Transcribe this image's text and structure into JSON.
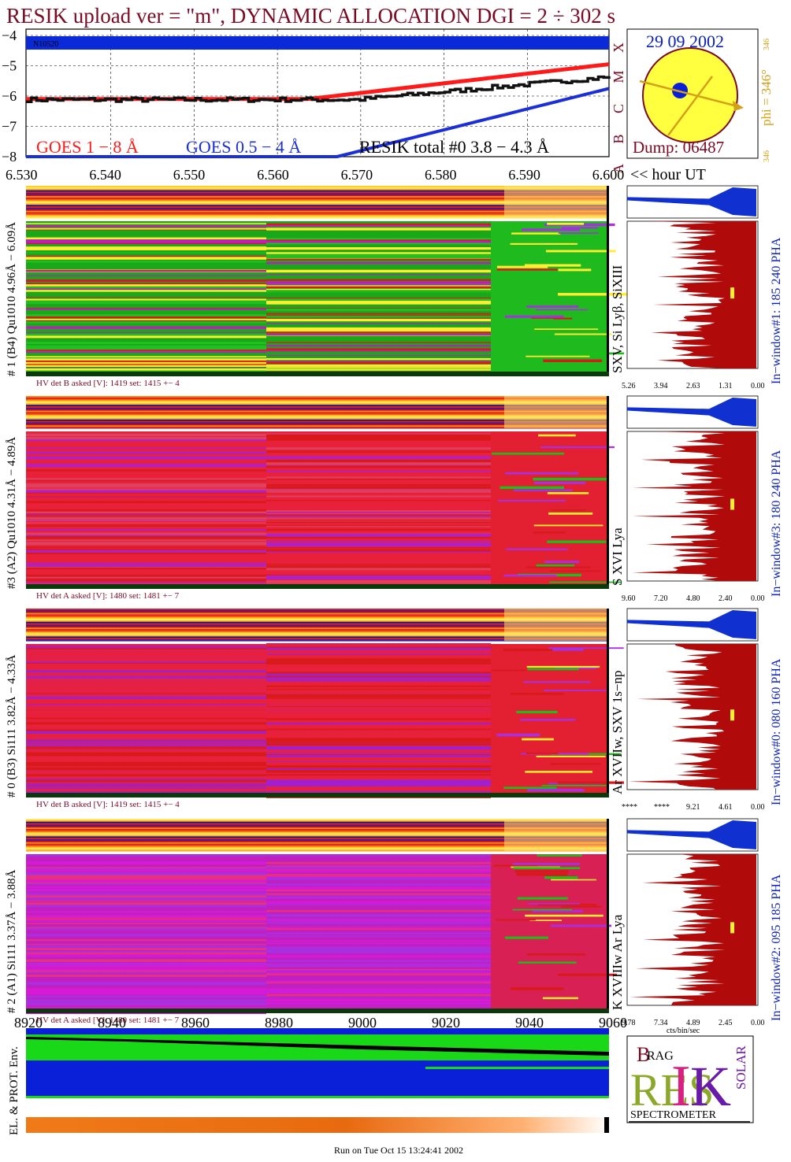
{
  "header": {
    "title": "RESIK upload ver = \"m\", DYNAMIC ALLOCATION  DGI =   2 ÷ 302 s"
  },
  "colors": {
    "title": "#7a0a22",
    "goes_long": "#ff1a1a",
    "goes_short": "#1a2fd8",
    "resik": "#111111",
    "histogram": "#b00a0a",
    "pha": "#1030d0",
    "sun_disk": "#ffff40",
    "phi_arrow": "#d4a017"
  },
  "lightcurve": {
    "region_label": "N10520",
    "y_ticks": [
      "−4",
      "−5",
      "−6",
      "−7",
      "−8"
    ],
    "class_letters": [
      "A",
      "B",
      "C",
      "M",
      "X"
    ],
    "legend": {
      "goes_long": "GOES 1 − 8 Å",
      "goes_short": "GOES 0.5 − 4 Å",
      "resik": "RESIK total #0  3.8 − 4.3 Å"
    },
    "x_ticks": [
      "6.530",
      "6.540",
      "6.550",
      "6.560",
      "6.570",
      "6.580",
      "6.590",
      "6.600"
    ],
    "x_unit": "<< hour UT"
  },
  "sun_panel": {
    "date": "29 09 2002",
    "dump": "Dump: 06487",
    "phi_label": "phi = 346°",
    "phi_small_top": "346",
    "phi_small_bottom": "346"
  },
  "channels": [
    {
      "left_label": "# 1 (B4) Qu1010 4.96Å − 6.09Å",
      "line_label": "SXV, Si Lyβ, SiXIII",
      "hv_text": "HV det B asked [V]:  1419 set:  1415  +−    4",
      "window_label": "In−window#1:  185 240 PHA",
      "hist_ticks": [
        "5.26",
        "3.94",
        "2.63",
        "1.31",
        "0.00"
      ]
    },
    {
      "left_label": "#3 (A2) Qu1010  4.31Å − 4.89Å",
      "line_label": "S XVI Lya",
      "hv_text": "HV det A asked [V]:  1480 set:  1481  +−    7",
      "window_label": "In−window#3:  180 240 PHA",
      "hist_ticks": [
        "9.60",
        "7.20",
        "4.80",
        "2.40",
        "0.00"
      ]
    },
    {
      "left_label": "# 0 (B3) Si111  3.82Å − 4.33Å",
      "line_label": "Ar XVIIw, SXV 1s−np",
      "hv_text": "HV det B asked [V]:  1419 set:  1415  +−    4",
      "window_label": "In−window#0:  080 160 PHA",
      "hist_ticks": [
        "****",
        "****",
        "9.21",
        "4.61",
        "0.00"
      ]
    },
    {
      "left_label": "# 2 (A1) Si111  3.37Å − 3.88Å",
      "line_label": "K XVIIIw  Ar Lya",
      "hv_text": "HV det A asked [V]:  1480 set:  1481  +−    7",
      "window_label": "In−window#2:  095 185 PHA",
      "hist_ticks": [
        "9.78",
        "7.34",
        "4.89",
        "2.45",
        "0.00"
      ]
    }
  ],
  "hist_unit": "cts/bin/sec",
  "env": {
    "left_label": "EL. & PROT. Env.",
    "x_ticks": [
      "8920",
      "8940",
      "8960",
      "8980",
      "9000",
      "9020",
      "9040",
      "9060"
    ]
  },
  "logo": {
    "letters": [
      "B",
      "RAG",
      "RES",
      "I",
      "K",
      "SOLAR"
    ],
    "caption": "SPECTROMETER"
  },
  "footer": "Run on Tue Oct 15 13:24:41 2002"
}
